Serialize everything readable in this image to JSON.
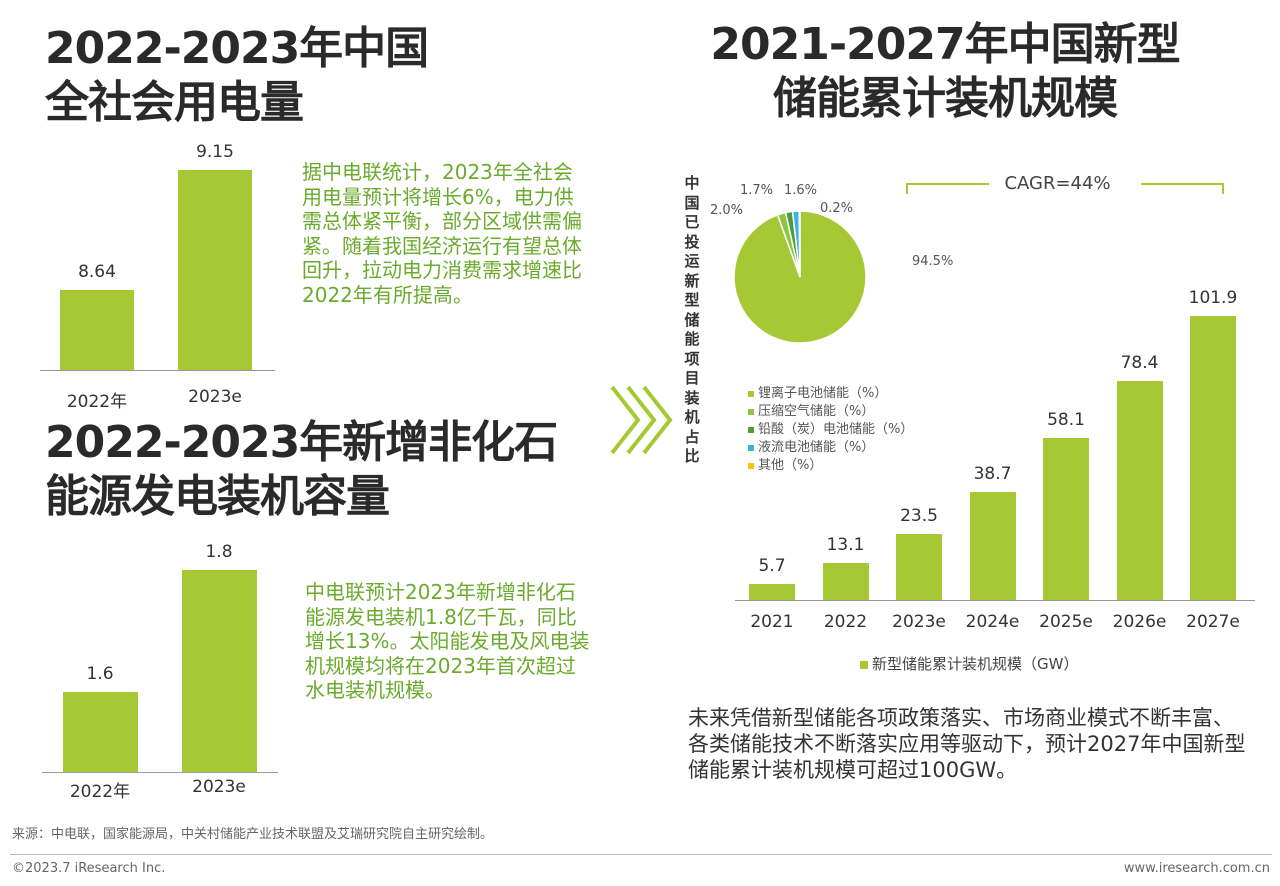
{
  "left_top": {
    "title_line1": "2022-2023年中国",
    "title_line2": "全社会用电量",
    "text": "据中电联统计，2023年全社会用电量预计将增长6%，电力供需总体紧平衡，部分区域供需偏紧。随着我国经济运行有望总体回升，拉动电力消费需求增速比2022年有所提高。"
  },
  "left_bottom": {
    "title_line1": "2022-2023年新增非化石",
    "title_line2": "能源发电装机容量",
    "text": "中电联预计2023年新增非化石能源发电装机1.8亿千瓦，同比增长13%。太阳能发电及风电装机规模均将在2023年首次超过水电装机规模。"
  },
  "right": {
    "title_line1": "2021-2027年中国新型",
    "title_line2": "储能累计装机规模",
    "pie_side_label": "中国已投运新型储能项目装机占比",
    "cagr": "CAGR=44%",
    "text": "未来凭借新型储能各项政策落实、市场商业模式不断丰富、各类储能技术不断落实应用等驱动下，预计2027年中国新型储能累计装机规模可超过100GW。"
  },
  "chart_data": [
    {
      "type": "bar",
      "categories": [
        "2022年",
        "2023e"
      ],
      "values": [
        8.64,
        9.15
      ],
      "value_labels": [
        "8.64",
        "9.15"
      ],
      "ylim": [
        8.3,
        9.2
      ],
      "color": "#a5c834"
    },
    {
      "type": "bar",
      "categories": [
        "2022年",
        "2023e"
      ],
      "values": [
        1.6,
        1.8
      ],
      "value_labels": [
        "1.6",
        "1.8"
      ],
      "ylim": [
        1.47,
        1.85
      ],
      "color": "#a5c834"
    },
    {
      "type": "pie",
      "slices": [
        {
          "name": "锂离子电池储能（%）",
          "value": 94.5,
          "label": "94.5%",
          "color": "#a5c834"
        },
        {
          "name": "压缩空气储能（%）",
          "value": 2.0,
          "label": "2.0%",
          "color": "#8cc63f"
        },
        {
          "name": "铅酸（炭）电池储能（%）",
          "value": 1.7,
          "label": "1.7%",
          "color": "#4f9a3a"
        },
        {
          "name": "液流电池储能（%）",
          "value": 1.6,
          "label": "1.6%",
          "color": "#38b6dc"
        },
        {
          "name": "其他（%）",
          "value": 0.2,
          "label": "0.2%",
          "color": "#f2c618"
        }
      ],
      "legend": "bottom-left"
    },
    {
      "type": "bar",
      "categories": [
        "2021",
        "2022",
        "2023e",
        "2024e",
        "2025e",
        "2026e",
        "2027e"
      ],
      "values": [
        5.7,
        13.1,
        23.5,
        38.7,
        58.1,
        78.4,
        101.9
      ],
      "value_labels": [
        "5.7",
        "13.1",
        "23.5",
        "38.7",
        "58.1",
        "78.4",
        "101.9"
      ],
      "series_name": "新型储能累计装机规模（GW）",
      "ylim": [
        0,
        105
      ],
      "color": "#a5c834",
      "legend": "bottom"
    }
  ],
  "footer": {
    "source": "来源：中电联，国家能源局，中关村储能产业技术联盟及艾瑞研究院自主研究绘制。",
    "copyright": "©2023.7 iResearch Inc.",
    "website": "www.iresearch.com.cn"
  }
}
